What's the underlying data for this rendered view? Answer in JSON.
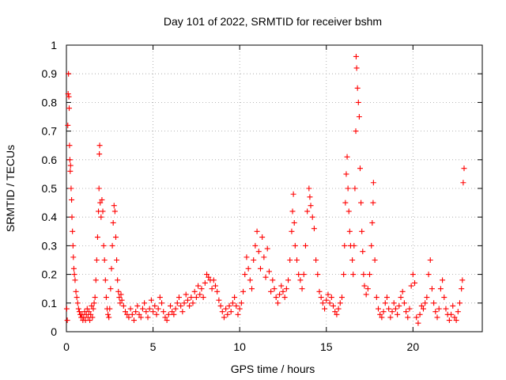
{
  "chart_data": {
    "type": "scatter",
    "title": "Day 101 of 2022, SRMTID for receiver bshm",
    "xlabel": "GPS time / hours",
    "ylabel": "SRMTID / TECUs",
    "xlim": [
      0,
      24
    ],
    "ylim": [
      0,
      1
    ],
    "x_ticks": [
      0,
      5,
      10,
      15,
      20
    ],
    "x_tick_labels": [
      "0",
      "5",
      "10",
      "15",
      "20"
    ],
    "y_ticks": [
      0,
      0.1,
      0.2,
      0.3,
      0.4,
      0.5,
      0.6,
      0.7,
      0.8,
      0.9,
      1
    ],
    "y_tick_labels": [
      "0",
      "0.1",
      "0.2",
      "0.3",
      "0.4",
      "0.5",
      "0.6",
      "0.7",
      "0.8",
      "0.9",
      "1"
    ],
    "grid": true,
    "marker": "+",
    "series": [
      {
        "name": "SRMTID",
        "color": "#ff0000",
        "points": [
          [
            0.02,
            0.08
          ],
          [
            0.05,
            0.04
          ],
          [
            0.08,
            0.72
          ],
          [
            0.1,
            0.83
          ],
          [
            0.12,
            0.9
          ],
          [
            0.14,
            0.82
          ],
          [
            0.16,
            0.78
          ],
          [
            0.18,
            0.65
          ],
          [
            0.2,
            0.6
          ],
          [
            0.22,
            0.56
          ],
          [
            0.24,
            0.58
          ],
          [
            0.27,
            0.5
          ],
          [
            0.3,
            0.46
          ],
          [
            0.32,
            0.4
          ],
          [
            0.35,
            0.35
          ],
          [
            0.38,
            0.3
          ],
          [
            0.4,
            0.26
          ],
          [
            0.43,
            0.22
          ],
          [
            0.46,
            0.2
          ],
          [
            0.5,
            0.18
          ],
          [
            0.55,
            0.14
          ],
          [
            0.6,
            0.12
          ],
          [
            0.65,
            0.1
          ],
          [
            0.7,
            0.08
          ],
          [
            0.75,
            0.07
          ],
          [
            0.8,
            0.06
          ],
          [
            0.85,
            0.05
          ],
          [
            0.9,
            0.06
          ],
          [
            0.95,
            0.04
          ],
          [
            1.0,
            0.05
          ],
          [
            1.05,
            0.07
          ],
          [
            1.1,
            0.04
          ],
          [
            1.15,
            0.06
          ],
          [
            1.2,
            0.08
          ],
          [
            1.25,
            0.05
          ],
          [
            1.3,
            0.07
          ],
          [
            1.35,
            0.04
          ],
          [
            1.4,
            0.06
          ],
          [
            1.45,
            0.09
          ],
          [
            1.5,
            0.05
          ],
          [
            1.55,
            0.08
          ],
          [
            1.6,
            0.1
          ],
          [
            1.65,
            0.12
          ],
          [
            1.7,
            0.18
          ],
          [
            1.75,
            0.25
          ],
          [
            1.8,
            0.33
          ],
          [
            1.85,
            0.42
          ],
          [
            1.88,
            0.5
          ],
          [
            1.9,
            0.62
          ],
          [
            1.92,
            0.65
          ],
          [
            1.95,
            0.45
          ],
          [
            2.0,
            0.4
          ],
          [
            2.05,
            0.46
          ],
          [
            2.1,
            0.42
          ],
          [
            2.15,
            0.3
          ],
          [
            2.2,
            0.25
          ],
          [
            2.25,
            0.18
          ],
          [
            2.3,
            0.12
          ],
          [
            2.35,
            0.08
          ],
          [
            2.4,
            0.06
          ],
          [
            2.45,
            0.05
          ],
          [
            2.5,
            0.08
          ],
          [
            2.55,
            0.15
          ],
          [
            2.6,
            0.22
          ],
          [
            2.65,
            0.3
          ],
          [
            2.7,
            0.38
          ],
          [
            2.75,
            0.44
          ],
          [
            2.8,
            0.42
          ],
          [
            2.85,
            0.33
          ],
          [
            2.9,
            0.25
          ],
          [
            2.95,
            0.18
          ],
          [
            3.0,
            0.14
          ],
          [
            3.05,
            0.12
          ],
          [
            3.1,
            0.1
          ],
          [
            3.15,
            0.13
          ],
          [
            3.2,
            0.11
          ],
          [
            3.3,
            0.09
          ],
          [
            3.4,
            0.07
          ],
          [
            3.5,
            0.06
          ],
          [
            3.6,
            0.05
          ],
          [
            3.7,
            0.08
          ],
          [
            3.8,
            0.06
          ],
          [
            3.9,
            0.04
          ],
          [
            4.0,
            0.07
          ],
          [
            4.1,
            0.09
          ],
          [
            4.2,
            0.06
          ],
          [
            4.3,
            0.05
          ],
          [
            4.4,
            0.08
          ],
          [
            4.5,
            0.1
          ],
          [
            4.6,
            0.07
          ],
          [
            4.7,
            0.05
          ],
          [
            4.8,
            0.08
          ],
          [
            4.9,
            0.11
          ],
          [
            5.0,
            0.07
          ],
          [
            5.1,
            0.09
          ],
          [
            5.2,
            0.06
          ],
          [
            5.3,
            0.08
          ],
          [
            5.4,
            0.12
          ],
          [
            5.5,
            0.1
          ],
          [
            5.6,
            0.07
          ],
          [
            5.7,
            0.05
          ],
          [
            5.8,
            0.04
          ],
          [
            5.9,
            0.06
          ],
          [
            6.0,
            0.09
          ],
          [
            6.1,
            0.07
          ],
          [
            6.2,
            0.06
          ],
          [
            6.3,
            0.08
          ],
          [
            6.4,
            0.1
          ],
          [
            6.5,
            0.12
          ],
          [
            6.6,
            0.09
          ],
          [
            6.7,
            0.07
          ],
          [
            6.8,
            0.1
          ],
          [
            6.9,
            0.13
          ],
          [
            7.0,
            0.11
          ],
          [
            7.1,
            0.09
          ],
          [
            7.2,
            0.12
          ],
          [
            7.3,
            0.1
          ],
          [
            7.4,
            0.14
          ],
          [
            7.5,
            0.12
          ],
          [
            7.6,
            0.16
          ],
          [
            7.7,
            0.13
          ],
          [
            7.8,
            0.15
          ],
          [
            7.9,
            0.12
          ],
          [
            8.0,
            0.17
          ],
          [
            8.1,
            0.2
          ],
          [
            8.2,
            0.19
          ],
          [
            8.3,
            0.18
          ],
          [
            8.4,
            0.15
          ],
          [
            8.5,
            0.18
          ],
          [
            8.6,
            0.16
          ],
          [
            8.7,
            0.14
          ],
          [
            8.8,
            0.11
          ],
          [
            8.9,
            0.09
          ],
          [
            9.0,
            0.07
          ],
          [
            9.1,
            0.05
          ],
          [
            9.2,
            0.08
          ],
          [
            9.3,
            0.06
          ],
          [
            9.4,
            0.09
          ],
          [
            9.5,
            0.07
          ],
          [
            9.6,
            0.1
          ],
          [
            9.7,
            0.12
          ],
          [
            9.8,
            0.09
          ],
          [
            9.9,
            0.06
          ],
          [
            10.0,
            0.08
          ],
          [
            10.1,
            0.1
          ],
          [
            10.2,
            0.14
          ],
          [
            10.3,
            0.2
          ],
          [
            10.4,
            0.26
          ],
          [
            10.5,
            0.22
          ],
          [
            10.6,
            0.18
          ],
          [
            10.7,
            0.15
          ],
          [
            10.8,
            0.25
          ],
          [
            10.9,
            0.3
          ],
          [
            11.0,
            0.35
          ],
          [
            11.1,
            0.28
          ],
          [
            11.2,
            0.22
          ],
          [
            11.3,
            0.33
          ],
          [
            11.4,
            0.26
          ],
          [
            11.5,
            0.19
          ],
          [
            11.6,
            0.29
          ],
          [
            11.7,
            0.21
          ],
          [
            11.8,
            0.14
          ],
          [
            11.9,
            0.18
          ],
          [
            12.0,
            0.15
          ],
          [
            12.1,
            0.12
          ],
          [
            12.2,
            0.1
          ],
          [
            12.3,
            0.13
          ],
          [
            12.4,
            0.16
          ],
          [
            12.5,
            0.14
          ],
          [
            12.6,
            0.12
          ],
          [
            12.7,
            0.15
          ],
          [
            12.8,
            0.18
          ],
          [
            12.9,
            0.25
          ],
          [
            13.0,
            0.35
          ],
          [
            13.05,
            0.42
          ],
          [
            13.1,
            0.48
          ],
          [
            13.15,
            0.38
          ],
          [
            13.2,
            0.3
          ],
          [
            13.3,
            0.25
          ],
          [
            13.4,
            0.2
          ],
          [
            13.5,
            0.18
          ],
          [
            13.6,
            0.15
          ],
          [
            13.7,
            0.2
          ],
          [
            13.8,
            0.3
          ],
          [
            13.9,
            0.42
          ],
          [
            14.0,
            0.5
          ],
          [
            14.05,
            0.47
          ],
          [
            14.1,
            0.44
          ],
          [
            14.2,
            0.4
          ],
          [
            14.3,
            0.36
          ],
          [
            14.4,
            0.25
          ],
          [
            14.5,
            0.2
          ],
          [
            14.6,
            0.14
          ],
          [
            14.7,
            0.12
          ],
          [
            14.8,
            0.1
          ],
          [
            14.9,
            0.08
          ],
          [
            15.0,
            0.11
          ],
          [
            15.1,
            0.13
          ],
          [
            15.2,
            0.1
          ],
          [
            15.3,
            0.12
          ],
          [
            15.4,
            0.09
          ],
          [
            15.5,
            0.07
          ],
          [
            15.6,
            0.06
          ],
          [
            15.7,
            0.08
          ],
          [
            15.8,
            0.1
          ],
          [
            15.9,
            0.12
          ],
          [
            16.0,
            0.2
          ],
          [
            16.05,
            0.3
          ],
          [
            16.1,
            0.45
          ],
          [
            16.15,
            0.55
          ],
          [
            16.2,
            0.61
          ],
          [
            16.25,
            0.5
          ],
          [
            16.3,
            0.42
          ],
          [
            16.35,
            0.35
          ],
          [
            16.4,
            0.3
          ],
          [
            16.5,
            0.25
          ],
          [
            16.55,
            0.2
          ],
          [
            16.6,
            0.3
          ],
          [
            16.65,
            0.5
          ],
          [
            16.7,
            0.7
          ],
          [
            16.72,
            0.96
          ],
          [
            16.75,
            0.92
          ],
          [
            16.8,
            0.85
          ],
          [
            16.85,
            0.8
          ],
          [
            16.9,
            0.75
          ],
          [
            16.95,
            0.57
          ],
          [
            17.0,
            0.45
          ],
          [
            17.05,
            0.35
          ],
          [
            17.1,
            0.28
          ],
          [
            17.15,
            0.2
          ],
          [
            17.2,
            0.16
          ],
          [
            17.3,
            0.13
          ],
          [
            17.4,
            0.15
          ],
          [
            17.5,
            0.2
          ],
          [
            17.6,
            0.3
          ],
          [
            17.65,
            0.38
          ],
          [
            17.7,
            0.45
          ],
          [
            17.72,
            0.52
          ],
          [
            17.8,
            0.25
          ],
          [
            17.9,
            0.12
          ],
          [
            18.0,
            0.08
          ],
          [
            18.1,
            0.06
          ],
          [
            18.2,
            0.05
          ],
          [
            18.3,
            0.07
          ],
          [
            18.4,
            0.1
          ],
          [
            18.5,
            0.12
          ],
          [
            18.6,
            0.08
          ],
          [
            18.7,
            0.05
          ],
          [
            18.8,
            0.07
          ],
          [
            18.9,
            0.1
          ],
          [
            19.0,
            0.08
          ],
          [
            19.1,
            0.06
          ],
          [
            19.2,
            0.09
          ],
          [
            19.3,
            0.12
          ],
          [
            19.4,
            0.14
          ],
          [
            19.5,
            0.1
          ],
          [
            19.6,
            0.07
          ],
          [
            19.7,
            0.05
          ],
          [
            19.8,
            0.08
          ],
          [
            19.9,
            0.16
          ],
          [
            20.0,
            0.2
          ],
          [
            20.1,
            0.17
          ],
          [
            20.2,
            0.05
          ],
          [
            20.3,
            0.03
          ],
          [
            20.4,
            0.06
          ],
          [
            20.5,
            0.09
          ],
          [
            20.6,
            0.08
          ],
          [
            20.7,
            0.1
          ],
          [
            20.8,
            0.12
          ],
          [
            20.9,
            0.2
          ],
          [
            21.0,
            0.25
          ],
          [
            21.1,
            0.15
          ],
          [
            21.2,
            0.1
          ],
          [
            21.3,
            0.07
          ],
          [
            21.4,
            0.05
          ],
          [
            21.5,
            0.08
          ],
          [
            21.6,
            0.15
          ],
          [
            21.7,
            0.18
          ],
          [
            21.8,
            0.12
          ],
          [
            21.9,
            0.08
          ],
          [
            22.0,
            0.06
          ],
          [
            22.1,
            0.04
          ],
          [
            22.2,
            0.06
          ],
          [
            22.3,
            0.09
          ],
          [
            22.4,
            0.05
          ],
          [
            22.5,
            0.04
          ],
          [
            22.6,
            0.07
          ],
          [
            22.7,
            0.1
          ],
          [
            22.8,
            0.15
          ],
          [
            22.85,
            0.18
          ],
          [
            22.9,
            0.52
          ],
          [
            22.95,
            0.57
          ]
        ]
      }
    ]
  }
}
